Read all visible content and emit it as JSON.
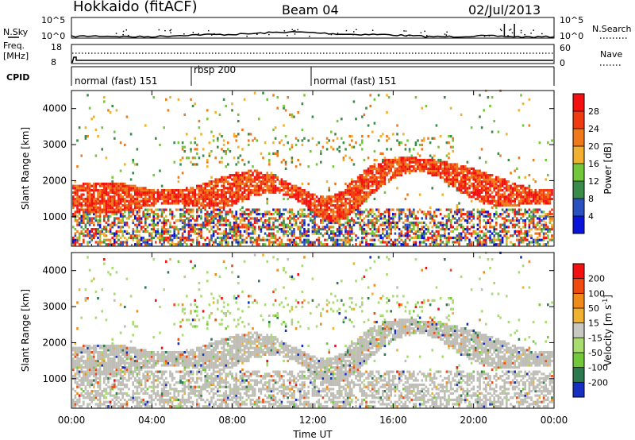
{
  "header": {
    "site": "Hokkaido (fitACF)",
    "beam": "Beam 04",
    "date": "02/Jul/2013"
  },
  "noise_panel": {
    "left_label": "N.Sky",
    "right_label": "N.Search",
    "left_ticks": [
      "10^5",
      "10^0"
    ],
    "right_ticks": [
      "10^5",
      "10^0"
    ]
  },
  "freq_panel": {
    "left_label_1": "Freq.",
    "left_label_2": "[MHz]",
    "right_label": "Nave",
    "left_ticks": [
      "18",
      "8"
    ],
    "right_ticks": [
      "60",
      "0"
    ]
  },
  "cpid_panel": {
    "label": "CPID",
    "modes": [
      {
        "label": "normal (fast) 151",
        "start_h": 0
      },
      {
        "label": "rbsp 200",
        "start_h": 6
      },
      {
        "label": "normal (fast) 151",
        "start_h": 12
      }
    ]
  },
  "chart_data": [
    {
      "type": "heatmap",
      "name": "Power",
      "ylabel": "Slant Range [km]",
      "x_range_hours": [
        0,
        24
      ],
      "ylim": [
        180,
        4500
      ],
      "yticks": [
        "1000",
        "2000",
        "3000",
        "4000"
      ],
      "colorbar": {
        "title": "Power [dB]",
        "ticks": [
          "4",
          "8",
          "12",
          "16",
          "20",
          "24",
          "28"
        ],
        "colors": [
          "#0a14d8",
          "#2a50c0",
          "#3a8a4a",
          "#72c83a",
          "#f0b030",
          "#f07a1a",
          "#f03a10",
          "#f41010"
        ]
      }
    },
    {
      "type": "heatmap",
      "name": "Velocity",
      "ylabel": "Slant Range [km]",
      "xlabel": "Time UT",
      "x_range_hours": [
        0,
        24
      ],
      "xticks": [
        "00:00",
        "04:00",
        "08:00",
        "12:00",
        "16:00",
        "20:00",
        "00:00"
      ],
      "ylim": [
        180,
        4500
      ],
      "yticks": [
        "1000",
        "2000",
        "3000",
        "4000"
      ],
      "colorbar": {
        "title": "Velocity [m s^-1]",
        "ticks": [
          "200",
          "100",
          "50",
          "15",
          "-15",
          "-50",
          "-100",
          "-200"
        ],
        "colors": [
          "#1830c0",
          "#2e7a50",
          "#72c83a",
          "#a8dc70",
          "#c8c8c0",
          "#f0b030",
          "#f08a1a",
          "#f04a10",
          "#f41010"
        ]
      }
    }
  ],
  "colors": {
    "ground_scatter": "#bebeb6"
  }
}
